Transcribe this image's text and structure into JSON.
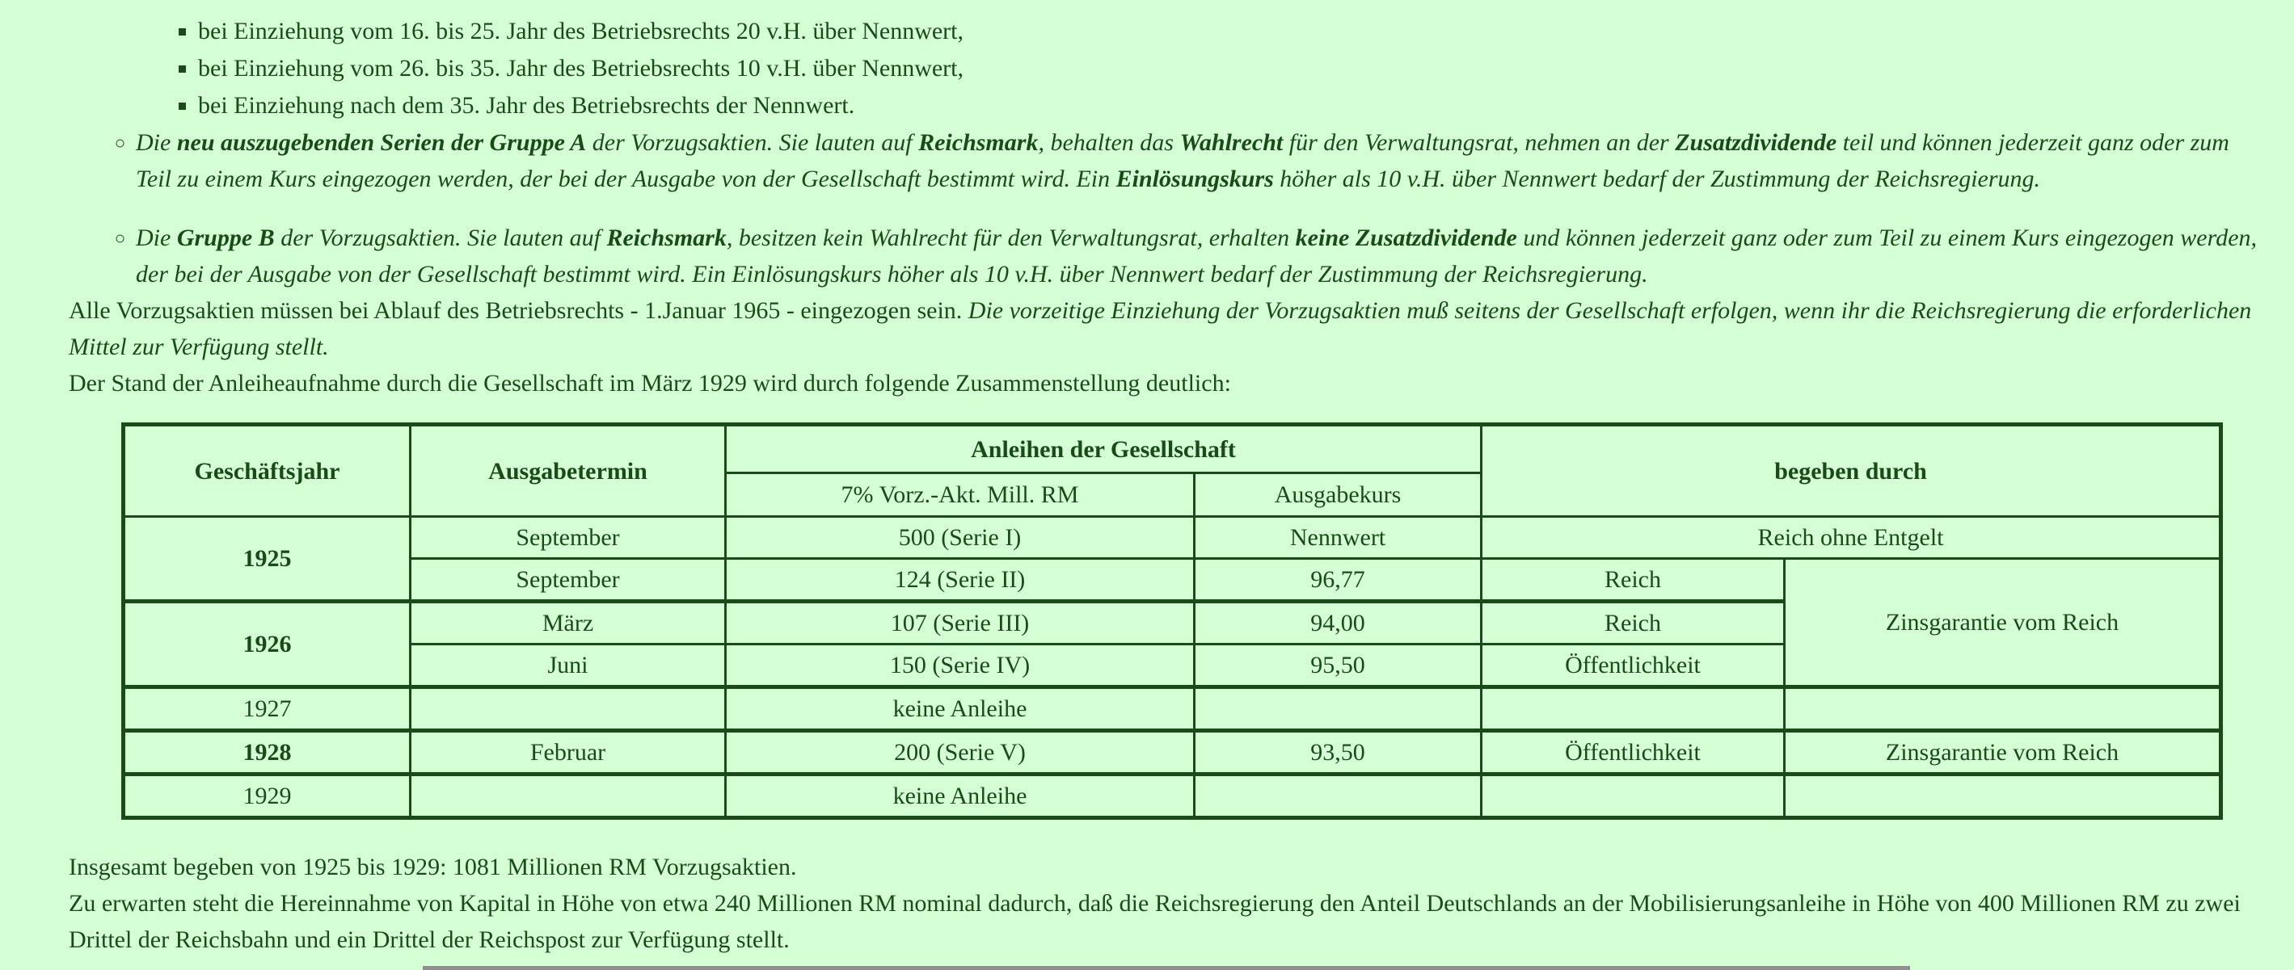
{
  "page": {
    "background_color": "#d5ffd5",
    "text_color": "#1a4a1a",
    "rule_color": "#8f8f8f",
    "language": "de"
  },
  "square_list": {
    "items": [
      "bei Einziehung vom 16. bis 25. Jahr des Betriebsrechts 20 v.H. über Nennwert,",
      "bei Einziehung vom 26. bis 35. Jahr des Betriebsrechts 10 v.H. über Nennwert,",
      "bei Einziehung nach dem 35. Jahr des Betriebsrechts der Nennwert."
    ]
  },
  "circle_list": {
    "items": [
      {
        "segments": [
          {
            "t": "Die ",
            "i": true
          },
          {
            "t": "neu auszugebenden Serien der Gruppe A",
            "b": true,
            "i": true
          },
          {
            "t": " der Vorzugsaktien. Sie lauten auf ",
            "i": true
          },
          {
            "t": "Reichsmark",
            "b": true,
            "i": true
          },
          {
            "t": ", behalten das ",
            "i": true
          },
          {
            "t": "Wahlrecht",
            "b": true,
            "i": true
          },
          {
            "t": " für den Verwaltungsrat, nehmen an der ",
            "i": true
          },
          {
            "t": "Zusatzdividende",
            "b": true,
            "i": true
          },
          {
            "t": " teil und können jederzeit ganz oder zum Teil zu einem Kurs eingezogen werden, der bei der Ausgabe von der Gesellschaft bestimmt wird. Ein ",
            "i": true
          },
          {
            "t": "Einlösungskurs",
            "b": true,
            "i": true
          },
          {
            "t": " höher als 10 v.H. über Nennwert bedarf der Zustimmung der Reichsregierung.",
            "i": true
          }
        ]
      },
      {
        "segments": [
          {
            "t": "Die ",
            "i": true
          },
          {
            "t": "Gruppe B",
            "b": true,
            "i": true
          },
          {
            "t": " der Vorzugsaktien. Sie lauten auf ",
            "i": true
          },
          {
            "t": "Reichsmark",
            "b": true,
            "i": true
          },
          {
            "t": ", besitzen kein Wahlrecht für den Verwaltungsrat, erhalten ",
            "i": true
          },
          {
            "t": "keine Zusatzdividende",
            "b": true,
            "i": true
          },
          {
            "t": " und können jederzeit ganz oder zum Teil zu einem Kurs eingezogen werden, der bei der Ausgabe von der Gesellschaft bestimmt wird. Ein Einlösungskurs höher als 10 v.H. über Nennwert bedarf der Zustimmung der Reichsregierung.",
            "i": true
          }
        ]
      }
    ]
  },
  "paragraphs": {
    "alle_vorzugsaktien": {
      "segments": [
        {
          "t": "Alle Vorzugsaktien müssen bei Ablauf des Betriebsrechts - 1.Januar 1965 - eingezogen sein. "
        },
        {
          "t": "Die vorzeitige Einziehung der Vorzugsaktien muß seitens der Gesellschaft erfolgen, wenn ihr die Reichsregierung die erforderlichen Mittel zur Verfügung stellt.",
          "i": true
        }
      ]
    },
    "stand": "Der Stand der Anleiheaufnahme durch die Gesellschaft im März 1929 wird durch folgende Zusammenstellung deutlich:",
    "insgesamt": "Insgesamt begeben von 1925 bis 1929: 1081 Millionen RM Vorzugsaktien.",
    "zu_erwarten": "Zu erwarten steht die Hereinnahme von Kapital in Höhe von etwa 240 Millionen RM nominal dadurch, daß die Reichsregierung den Anteil Deutschlands an der Mobilisierungsanleihe in Höhe von 400 Millionen RM zu zwei Drittel der Reichsbahn und ein Drittel der Reichspost zur Verfügung stellt."
  },
  "table": {
    "header": {
      "geschaeftsjahr": "Geschäftsjahr",
      "ausgabetermin": "Ausgabetermin",
      "anleihen": "Anleihen der Gesellschaft",
      "vorz_akt": "7% Vorz.-Akt. Mill. RM",
      "ausgabekurs": "Ausgabekurs",
      "begeben": "begeben durch"
    },
    "rows": [
      {
        "jahr": "1925",
        "termin": "September",
        "anleihe": "500 (Serie I)",
        "kurs": "Nennwert",
        "begeben1": "Reich ohne Entgelt"
      },
      {
        "termin": "September",
        "anleihe": "124 (Serie II)",
        "kurs": "96,77",
        "begeben1": "Reich",
        "begeben2": "Zinsgarantie vom Reich"
      },
      {
        "jahr": "1926",
        "termin": "März",
        "anleihe": "107 (Serie III)",
        "kurs": "94,00",
        "begeben1": "Reich"
      },
      {
        "termin": "Juni",
        "anleihe": "150 (Serie IV)",
        "kurs": "95,50",
        "begeben1": "Öffentlichkeit"
      },
      {
        "jahr": "1927",
        "termin": "",
        "anleihe": "keine Anleihe",
        "kurs": "",
        "begeben1": "",
        "begeben2": ""
      },
      {
        "jahr": "1928",
        "termin": "Februar",
        "anleihe": "200 (Serie V)",
        "kurs": "93,50",
        "begeben1": "Öffentlichkeit",
        "begeben2": "Zinsgarantie vom Reich"
      },
      {
        "jahr": "1929",
        "termin": "",
        "anleihe": "keine Anleihe",
        "kurs": "",
        "begeben1": "",
        "begeben2": ""
      }
    ]
  }
}
